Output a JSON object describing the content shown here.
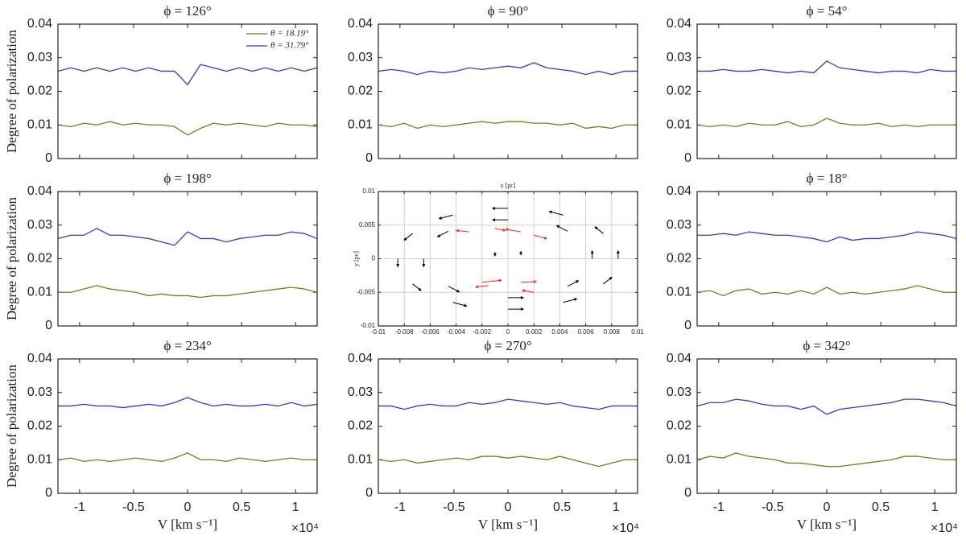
{
  "chart_data": [
    {
      "type": "line",
      "title": "ϕ = 126°",
      "ylabel": "Degree of polarization",
      "legend": "upper right",
      "x": [
        -12000,
        -10800,
        -9600,
        -8400,
        -7200,
        -6000,
        -4800,
        -3600,
        -2400,
        -1200,
        0,
        1200,
        2400,
        3600,
        4800,
        6000,
        7200,
        8400,
        9600,
        10800,
        12000
      ],
      "xlim": [
        -12000,
        12000
      ],
      "xticks": [
        -10000,
        -5000,
        0,
        5000,
        10000
      ],
      "show_xtick_labels": false,
      "ylim": [
        0,
        0.04
      ],
      "yticks": [
        0,
        0.01,
        0.02,
        0.03,
        0.04
      ],
      "series": [
        {
          "name": "θ = 18.19°",
          "color": "#8b7412",
          "values": [
            0.01,
            0.0095,
            0.0105,
            0.01,
            0.011,
            0.01,
            0.0105,
            0.01,
            0.01,
            0.0095,
            0.007,
            0.009,
            0.0105,
            0.01,
            0.0105,
            0.01,
            0.0095,
            0.0105,
            0.01,
            0.01,
            0.0095
          ]
        },
        {
          "name": "θ = 31.79°",
          "color": "#4b2fd6",
          "values": [
            0.026,
            0.027,
            0.026,
            0.027,
            0.026,
            0.027,
            0.026,
            0.027,
            0.026,
            0.026,
            0.022,
            0.028,
            0.027,
            0.026,
            0.027,
            0.026,
            0.027,
            0.026,
            0.027,
            0.026,
            0.027
          ]
        }
      ]
    },
    {
      "type": "line",
      "title": "ϕ = 90°",
      "x": [
        -12000,
        -10800,
        -9600,
        -8400,
        -7200,
        -6000,
        -4800,
        -3600,
        -2400,
        -1200,
        0,
        1200,
        2400,
        3600,
        4800,
        6000,
        7200,
        8400,
        9600,
        10800,
        12000
      ],
      "xlim": [
        -12000,
        12000
      ],
      "xticks": [
        -10000,
        -5000,
        0,
        5000,
        10000
      ],
      "show_xtick_labels": false,
      "ylim": [
        0,
        0.04
      ],
      "yticks": [
        0,
        0.01,
        0.02,
        0.03,
        0.04
      ],
      "series": [
        {
          "color": "#8b7412",
          "values": [
            0.01,
            0.0095,
            0.0105,
            0.009,
            0.01,
            0.0095,
            0.01,
            0.0105,
            0.011,
            0.0105,
            0.011,
            0.011,
            0.0105,
            0.0105,
            0.01,
            0.0105,
            0.009,
            0.0095,
            0.009,
            0.01,
            0.01
          ]
        },
        {
          "color": "#4b2fd6",
          "values": [
            0.026,
            0.0265,
            0.026,
            0.025,
            0.026,
            0.0255,
            0.026,
            0.027,
            0.0265,
            0.027,
            0.0275,
            0.027,
            0.0285,
            0.027,
            0.0265,
            0.026,
            0.025,
            0.026,
            0.025,
            0.026,
            0.026
          ]
        }
      ]
    },
    {
      "type": "line",
      "title": "ϕ = 54°",
      "x": [
        -12000,
        -10800,
        -9600,
        -8400,
        -7200,
        -6000,
        -4800,
        -3600,
        -2400,
        -1200,
        0,
        1200,
        2400,
        3600,
        4800,
        6000,
        7200,
        8400,
        9600,
        10800,
        12000
      ],
      "xlim": [
        -12000,
        12000
      ],
      "xticks": [
        -10000,
        -5000,
        0,
        5000,
        10000
      ],
      "show_xtick_labels": false,
      "ylim": [
        0,
        0.04
      ],
      "yticks": [
        0,
        0.01,
        0.02,
        0.03,
        0.04
      ],
      "series": [
        {
          "color": "#8b7412",
          "values": [
            0.01,
            0.0095,
            0.01,
            0.0095,
            0.0105,
            0.01,
            0.01,
            0.011,
            0.0095,
            0.01,
            0.012,
            0.0105,
            0.01,
            0.01,
            0.0105,
            0.0095,
            0.01,
            0.0095,
            0.01,
            0.01,
            0.01
          ]
        },
        {
          "color": "#4b2fd6",
          "values": [
            0.026,
            0.026,
            0.0265,
            0.026,
            0.026,
            0.0265,
            0.026,
            0.0255,
            0.026,
            0.0255,
            0.029,
            0.027,
            0.0265,
            0.026,
            0.0255,
            0.026,
            0.026,
            0.0255,
            0.0265,
            0.026,
            0.026
          ]
        }
      ]
    },
    {
      "type": "line",
      "title": "ϕ = 198°",
      "ylabel": "Degree of polarization",
      "x": [
        -12000,
        -10800,
        -9600,
        -8400,
        -7200,
        -6000,
        -4800,
        -3600,
        -2400,
        -1200,
        0,
        1200,
        2400,
        3600,
        4800,
        6000,
        7200,
        8400,
        9600,
        10800,
        12000
      ],
      "xlim": [
        -12000,
        12000
      ],
      "xticks": [
        -10000,
        -5000,
        0,
        5000,
        10000
      ],
      "show_xtick_labels": false,
      "ylim": [
        0,
        0.04
      ],
      "yticks": [
        0,
        0.01,
        0.02,
        0.03,
        0.04
      ],
      "series": [
        {
          "color": "#8b7412",
          "values": [
            0.01,
            0.01,
            0.011,
            0.012,
            0.011,
            0.0105,
            0.01,
            0.009,
            0.0095,
            0.009,
            0.009,
            0.0085,
            0.009,
            0.009,
            0.0095,
            0.01,
            0.0105,
            0.011,
            0.0115,
            0.011,
            0.01
          ]
        },
        {
          "color": "#4b2fd6",
          "values": [
            0.026,
            0.027,
            0.027,
            0.029,
            0.027,
            0.027,
            0.0265,
            0.026,
            0.025,
            0.024,
            0.028,
            0.026,
            0.026,
            0.025,
            0.026,
            0.0265,
            0.027,
            0.027,
            0.028,
            0.0275,
            0.026
          ]
        }
      ]
    },
    {
      "type": "quiver",
      "xlabel": "x [pc]",
      "ylabel": "y [pc]",
      "grid": true,
      "xlim": [
        -0.01,
        0.01
      ],
      "xticks": [
        -0.01,
        -0.008,
        -0.006,
        -0.004,
        -0.002,
        0,
        0.002,
        0.004,
        0.006,
        0.008,
        0.01
      ],
      "ylim": [
        -0.01,
        0.01
      ],
      "yticks": [
        -0.01,
        -0.005,
        0,
        0.005,
        0.01
      ],
      "series": [
        {
          "color": "#000000",
          "x": [
            0.0085,
            0.00736,
            0.00425,
            0,
            -0.00425,
            -0.00736,
            -0.0085,
            -0.00736,
            -0.00425,
            0,
            0.00425,
            0.00736,
            0.0065,
            0.0046,
            0,
            -0.0046,
            -0.0065,
            -0.0046,
            0,
            0.0046,
            -0.001,
            0.001
          ],
          "y": [
            0,
            0.00375,
            0.0065,
            0.0075,
            0.0065,
            0.00375,
            0,
            -0.00375,
            -0.0065,
            -0.0075,
            -0.0065,
            -0.00375,
            0,
            0.0041,
            0.0058,
            0.0041,
            0,
            -0.0041,
            -0.0058,
            -0.0041,
            0.001,
            0.0005
          ],
          "u": [
            0,
            -0.00066,
            -0.00107,
            -0.0012,
            -0.00107,
            -0.00066,
            0,
            0.00066,
            0.00107,
            0.0012,
            0.00107,
            0.00066,
            0,
            -0.00085,
            -0.0012,
            -0.00085,
            0,
            0.00085,
            0.0012,
            0.00085,
            0,
            0
          ],
          "v": [
            0.0012,
            0.001,
            0.00054,
            0,
            -0.00054,
            -0.001,
            -0.0012,
            -0.001,
            -0.00054,
            0,
            0.00054,
            0.001,
            0.0012,
            0.00085,
            0,
            -0.00085,
            -0.0012,
            -0.00085,
            0,
            0.00085,
            -0.0006,
            0.0006
          ]
        },
        {
          "color": "#ff2020",
          "x": [
            -0.003,
            -0.001,
            0.001,
            0.002,
            -0.002,
            -0.0015,
            0.001,
            0.002
          ],
          "y": [
            0.004,
            0.0045,
            0.004,
            0.0035,
            -0.0035,
            -0.004,
            -0.0035,
            -0.005
          ],
          "u": [
            -0.001,
            0.0008,
            -0.0012,
            0.001,
            0.0015,
            -0.001,
            0.0012,
            -0.0009
          ],
          "v": [
            0.0002,
            -0.0003,
            0.0004,
            -0.0005,
            0.0003,
            -0.0002,
            0.0001,
            0.0003
          ]
        }
      ]
    },
    {
      "type": "line",
      "title": "ϕ = 18°",
      "x": [
        -12000,
        -10800,
        -9600,
        -8400,
        -7200,
        -6000,
        -4800,
        -3600,
        -2400,
        -1200,
        0,
        1200,
        2400,
        3600,
        4800,
        6000,
        7200,
        8400,
        9600,
        10800,
        12000
      ],
      "xlim": [
        -12000,
        12000
      ],
      "xticks": [
        -10000,
        -5000,
        0,
        5000,
        10000
      ],
      "show_xtick_labels": false,
      "ylim": [
        0,
        0.04
      ],
      "yticks": [
        0,
        0.01,
        0.02,
        0.03,
        0.04
      ],
      "series": [
        {
          "color": "#8b7412",
          "values": [
            0.01,
            0.0105,
            0.009,
            0.0105,
            0.011,
            0.0095,
            0.01,
            0.0095,
            0.0105,
            0.0095,
            0.0115,
            0.0095,
            0.01,
            0.0095,
            0.01,
            0.0105,
            0.011,
            0.012,
            0.011,
            0.01,
            0.01
          ]
        },
        {
          "color": "#4b2fd6",
          "values": [
            0.027,
            0.027,
            0.0275,
            0.027,
            0.028,
            0.0275,
            0.027,
            0.027,
            0.0265,
            0.026,
            0.025,
            0.0265,
            0.0255,
            0.026,
            0.026,
            0.0265,
            0.027,
            0.028,
            0.0275,
            0.027,
            0.026
          ]
        }
      ]
    },
    {
      "type": "line",
      "title": "ϕ = 234°",
      "ylabel": "Degree of polarization",
      "xlabel": "V [km s⁻¹]",
      "x_multiplier": "×10⁴",
      "x": [
        -12000,
        -10800,
        -9600,
        -8400,
        -7200,
        -6000,
        -4800,
        -3600,
        -2400,
        -1200,
        0,
        1200,
        2400,
        3600,
        4800,
        6000,
        7200,
        8400,
        9600,
        10800,
        12000
      ],
      "xlim": [
        -12000,
        12000
      ],
      "xticks": [
        {
          "value": -10000,
          "label": "-1"
        },
        {
          "value": -5000,
          "label": "-0.5"
        },
        0,
        {
          "value": 5000,
          "label": "0.5"
        },
        {
          "value": 10000,
          "label": "1"
        }
      ],
      "show_xtick_labels": true,
      "ylim": [
        0,
        0.04
      ],
      "yticks": [
        0,
        0.01,
        0.02,
        0.03,
        0.04
      ],
      "series": [
        {
          "color": "#8b7412",
          "values": [
            0.01,
            0.0105,
            0.0095,
            0.01,
            0.0095,
            0.01,
            0.0105,
            0.01,
            0.0095,
            0.0105,
            0.012,
            0.01,
            0.01,
            0.0095,
            0.0105,
            0.01,
            0.0095,
            0.01,
            0.0105,
            0.01,
            0.01
          ]
        },
        {
          "color": "#4b2fd6",
          "values": [
            0.026,
            0.026,
            0.0265,
            0.026,
            0.026,
            0.0255,
            0.026,
            0.0265,
            0.026,
            0.027,
            0.0285,
            0.027,
            0.026,
            0.0265,
            0.026,
            0.026,
            0.0265,
            0.026,
            0.027,
            0.026,
            0.0265
          ]
        }
      ]
    },
    {
      "type": "line",
      "title": "ϕ = 270°",
      "xlabel": "V [km s⁻¹]",
      "x_multiplier": "×10⁴",
      "x": [
        -12000,
        -10800,
        -9600,
        -8400,
        -7200,
        -6000,
        -4800,
        -3600,
        -2400,
        -1200,
        0,
        1200,
        2400,
        3600,
        4800,
        6000,
        7200,
        8400,
        9600,
        10800,
        12000
      ],
      "xlim": [
        -12000,
        12000
      ],
      "xticks": [
        {
          "value": -10000,
          "label": "-1"
        },
        {
          "value": -5000,
          "label": "-0.5"
        },
        0,
        {
          "value": 5000,
          "label": "0.5"
        },
        {
          "value": 10000,
          "label": "1"
        }
      ],
      "show_xtick_labels": true,
      "ylim": [
        0,
        0.04
      ],
      "yticks": [
        0,
        0.01,
        0.02,
        0.03,
        0.04
      ],
      "series": [
        {
          "color": "#8b7412",
          "values": [
            0.01,
            0.0095,
            0.01,
            0.009,
            0.0095,
            0.01,
            0.0105,
            0.01,
            0.011,
            0.011,
            0.0105,
            0.011,
            0.0105,
            0.01,
            0.011,
            0.01,
            0.009,
            0.008,
            0.009,
            0.01,
            0.01
          ]
        },
        {
          "color": "#4b2fd6",
          "values": [
            0.026,
            0.026,
            0.025,
            0.026,
            0.0265,
            0.026,
            0.026,
            0.027,
            0.0265,
            0.027,
            0.028,
            0.0275,
            0.027,
            0.0265,
            0.027,
            0.026,
            0.0255,
            0.025,
            0.026,
            0.026,
            0.026
          ]
        }
      ]
    },
    {
      "type": "line",
      "title": "ϕ = 342°",
      "xlabel": "V [km s⁻¹]",
      "x_multiplier": "×10⁴",
      "x": [
        -12000,
        -10800,
        -9600,
        -8400,
        -7200,
        -6000,
        -4800,
        -3600,
        -2400,
        -1200,
        0,
        1200,
        2400,
        3600,
        4800,
        6000,
        7200,
        8400,
        9600,
        10800,
        12000
      ],
      "xlim": [
        -12000,
        12000
      ],
      "xticks": [
        {
          "value": -10000,
          "label": "-1"
        },
        {
          "value": -5000,
          "label": "-0.5"
        },
        0,
        {
          "value": 5000,
          "label": "0.5"
        },
        {
          "value": 10000,
          "label": "1"
        }
      ],
      "show_xtick_labels": true,
      "ylim": [
        0,
        0.04
      ],
      "yticks": [
        0,
        0.01,
        0.02,
        0.03,
        0.04
      ],
      "series": [
        {
          "color": "#8b7412",
          "values": [
            0.01,
            0.011,
            0.0105,
            0.012,
            0.011,
            0.0105,
            0.01,
            0.009,
            0.009,
            0.0085,
            0.008,
            0.008,
            0.0085,
            0.009,
            0.0095,
            0.01,
            0.011,
            0.011,
            0.0105,
            0.01,
            0.01
          ]
        },
        {
          "color": "#4b2fd6",
          "values": [
            0.026,
            0.027,
            0.027,
            0.028,
            0.0275,
            0.0265,
            0.026,
            0.026,
            0.025,
            0.026,
            0.0235,
            0.025,
            0.0255,
            0.026,
            0.0265,
            0.027,
            0.028,
            0.028,
            0.0275,
            0.027,
            0.026
          ]
        }
      ]
    }
  ]
}
